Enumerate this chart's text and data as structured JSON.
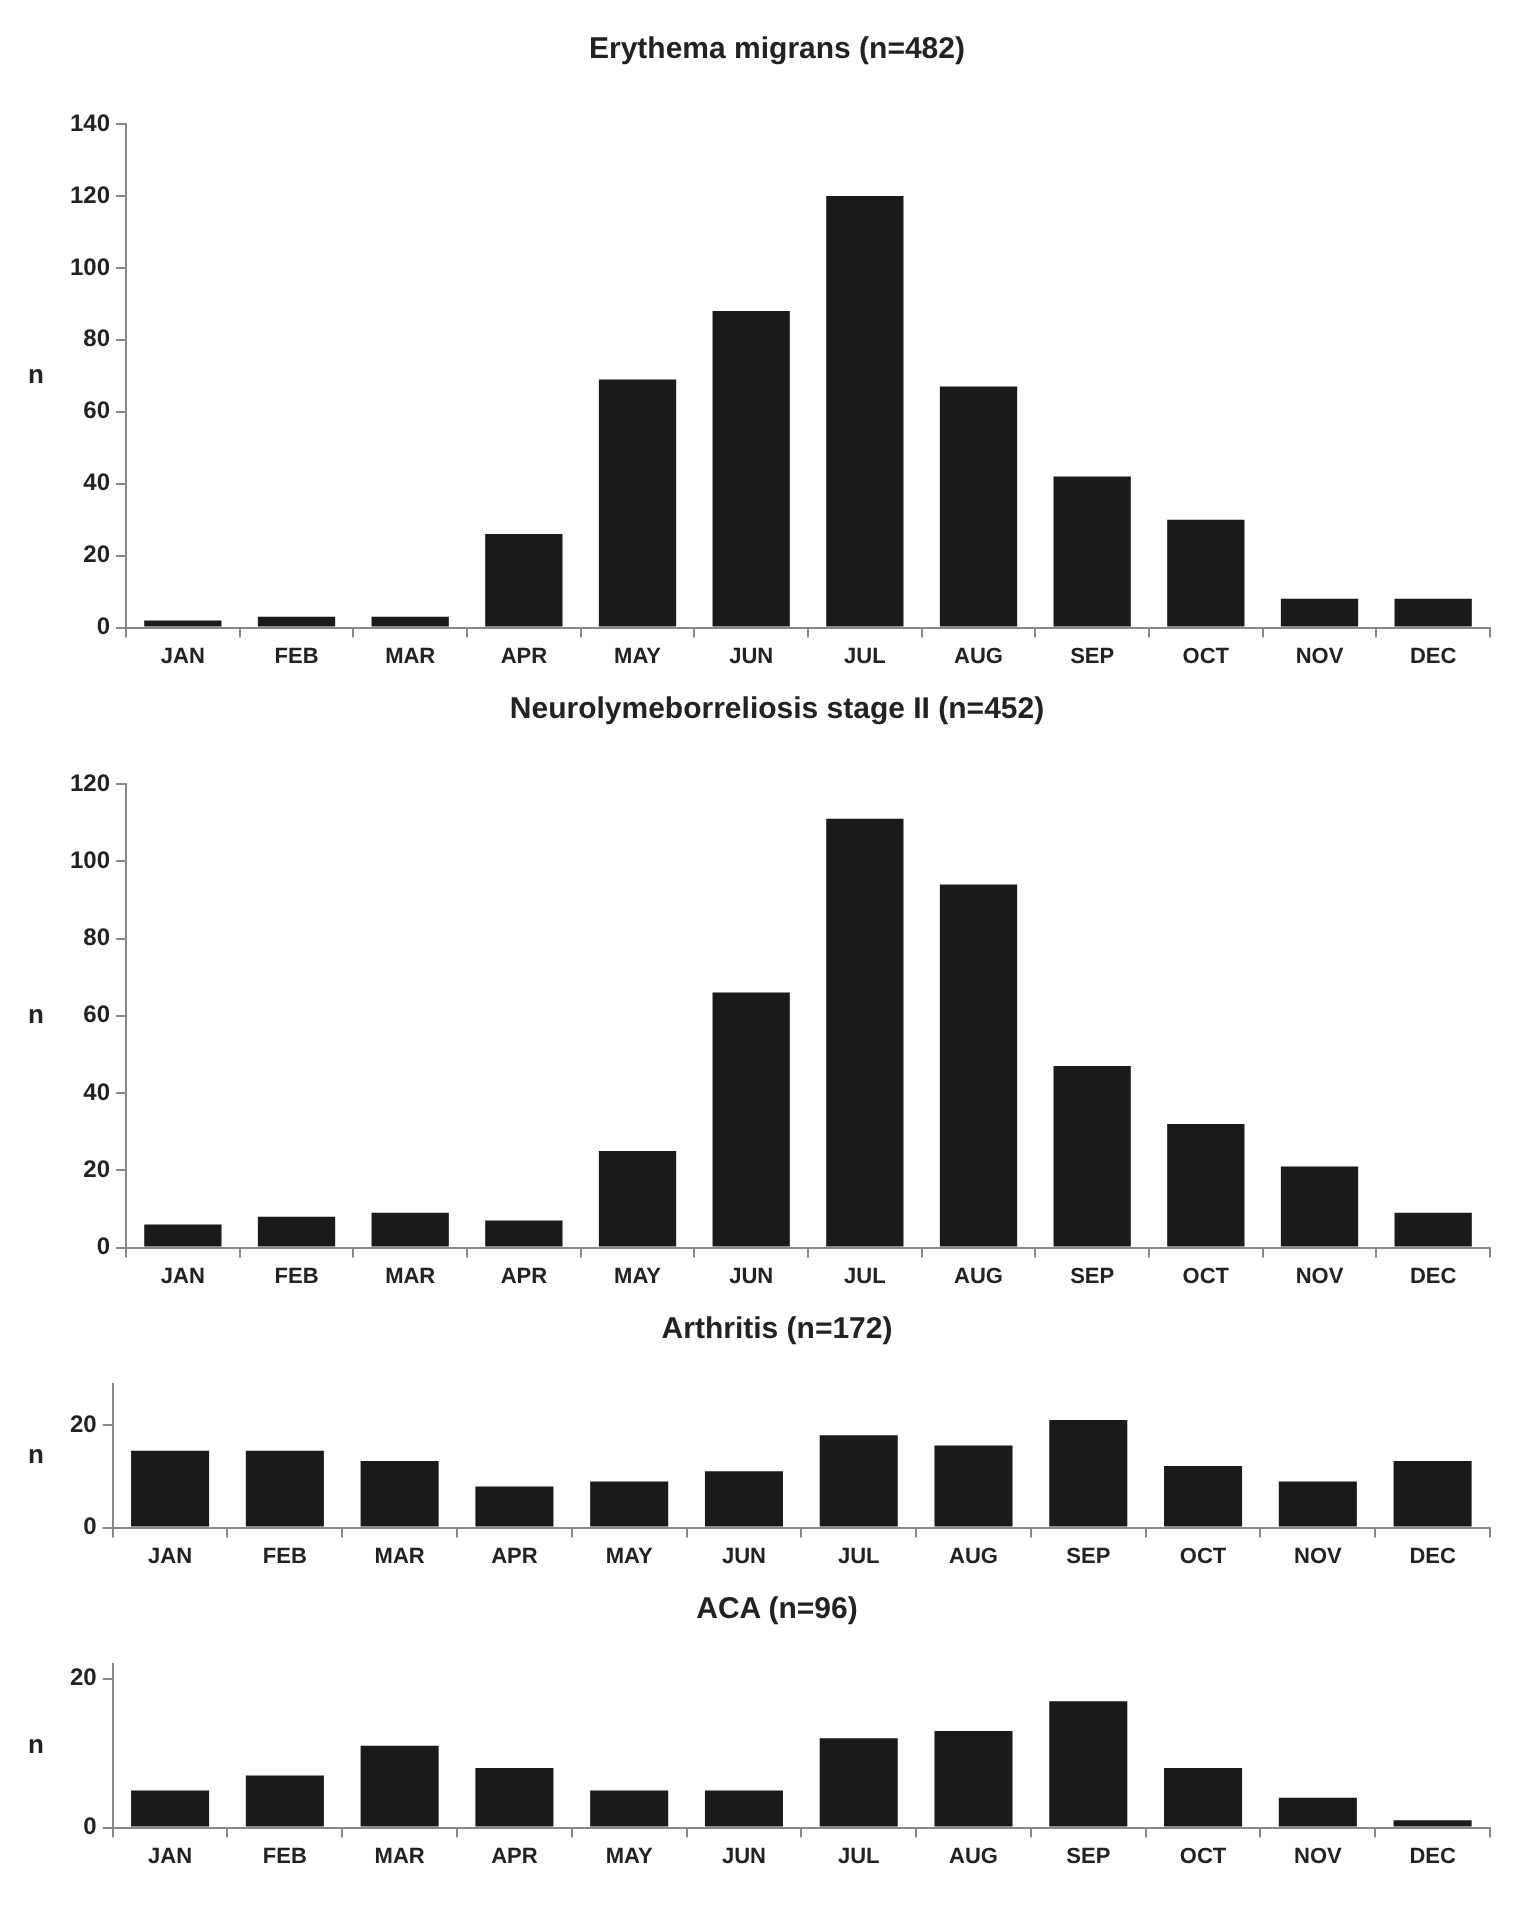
{
  "chart_data": [
    {
      "type": "bar",
      "title": "Erythema migrans (n=482)",
      "ylabel": "n",
      "categories": [
        "JAN",
        "FEB",
        "MAR",
        "APR",
        "MAY",
        "JUN",
        "JUL",
        "AUG",
        "SEP",
        "OCT",
        "NOV",
        "DEC"
      ],
      "values": [
        2,
        3,
        3,
        26,
        69,
        88,
        120,
        67,
        42,
        30,
        8,
        8
      ],
      "color": "#1a1a1a",
      "ylim": [
        0,
        140
      ],
      "yticks": [
        0,
        20,
        40,
        60,
        80,
        100,
        120,
        140
      ]
    },
    {
      "type": "bar",
      "title": "Neurolymeborreliosis stage II (n=452)",
      "ylabel": "n",
      "categories": [
        "JAN",
        "FEB",
        "MAR",
        "APR",
        "MAY",
        "JUN",
        "JUL",
        "AUG",
        "SEP",
        "OCT",
        "NOV",
        "DEC"
      ],
      "values": [
        6,
        8,
        9,
        7,
        25,
        66,
        111,
        94,
        47,
        32,
        21,
        9
      ],
      "color": "#1a1a1a",
      "ylim": [
        0,
        120
      ],
      "yticks": [
        0,
        20,
        40,
        60,
        80,
        100,
        120
      ]
    },
    {
      "type": "bar",
      "title": "Arthritis (n=172)",
      "ylabel": "n",
      "categories": [
        "JAN",
        "FEB",
        "MAR",
        "APR",
        "MAY",
        "JUN",
        "JUL",
        "AUG",
        "SEP",
        "OCT",
        "NOV",
        "DEC"
      ],
      "values": [
        15,
        15,
        13,
        8,
        9,
        11,
        18,
        16,
        21,
        12,
        9,
        13
      ],
      "color": "#1a1a1a",
      "ylim": [
        0,
        28
      ],
      "yticks": [
        0,
        20
      ]
    },
    {
      "type": "bar",
      "title": "ACA (n=96)",
      "ylabel": "n",
      "categories": [
        "JAN",
        "FEB",
        "MAR",
        "APR",
        "MAY",
        "JUN",
        "JUL",
        "AUG",
        "SEP",
        "OCT",
        "NOV",
        "DEC"
      ],
      "values": [
        5,
        7,
        11,
        8,
        5,
        5,
        12,
        13,
        17,
        8,
        4,
        1
      ],
      "color": "#1a1a1a",
      "ylim": [
        0,
        22
      ],
      "yticks": [
        0,
        20
      ]
    }
  ]
}
